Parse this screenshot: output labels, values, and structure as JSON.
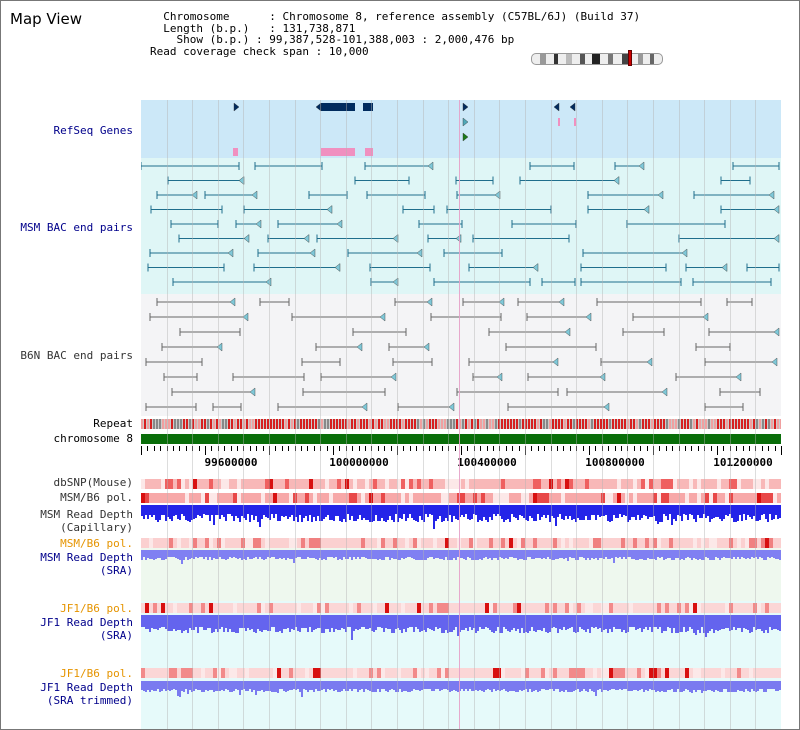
{
  "app": {
    "view_title": "Map View"
  },
  "header": {
    "rows": [
      {
        "label": "Chromosome",
        "value": "Chromosome 8, reference assembly (C57BL/6J) (Build 37)"
      },
      {
        "label": "Length (b.p.)",
        "value": "131,738,871"
      },
      {
        "label": "Show (b.p.)",
        "value": "99,387,528-101,388,003 : 2,000,476 bp"
      },
      {
        "label": "Read coverage check span",
        "value": "10,000"
      }
    ]
  },
  "tracks": {
    "refseq_genes": "RefSeq Genes",
    "msm_bac": "MSM BAC end pairs",
    "b6n_bac": "B6N BAC end pairs",
    "repeat": "Repeat",
    "chromosome": "chromosome 8",
    "dbsnp": "dbSNP(Mouse)",
    "msm_b6_pol_1": "MSM/B6 pol.",
    "msm_depth_cap_1": "MSM Read Depth",
    "msm_depth_cap_2": "(Capillary)",
    "msm_b6_pol_2": "MSM/B6 pol.",
    "msm_depth_sra_1": "MSM Read Depth",
    "msm_depth_sra_2": "(SRA)",
    "jf1_b6_pol_1": "JF1/B6 pol.",
    "jf1_depth_sra_1": "JF1 Read Depth",
    "jf1_depth_sra_2": "(SRA)",
    "jf1_b6_pol_2": "JF1/B6 pol.",
    "jf1_depth_trim_1": "JF1 Read Depth",
    "jf1_depth_trim_2": "(SRA trimmed)"
  },
  "ruler": {
    "ticks": [
      "99600000",
      "100000000",
      "100400000",
      "100800000",
      "101200000"
    ]
  },
  "colors": {
    "refseq_bg": "#cce8f8",
    "msm_bg": "#dff6f6",
    "b6n_bg": "#f4f4f6",
    "chrom_bar": "#0a6e0a",
    "depth_blue": "#2a2aee",
    "depth_light": "#7f7ff0",
    "pol_red": "#e84040",
    "gene_navy": "#002b5e",
    "bac_teal": "#1f6e8c",
    "b6n_gray": "#666666"
  }
}
